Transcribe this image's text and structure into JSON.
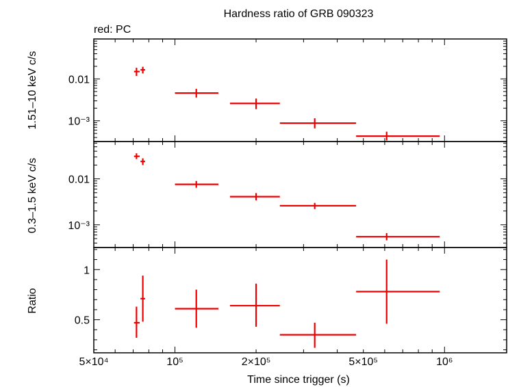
{
  "chart_data": {
    "type": "scatter",
    "title": "Hardness ratio of GRB 090323",
    "subtitle": "red: PC",
    "xlabel": "Time since trigger (s)",
    "x_scale": "log",
    "xlim": [
      50000,
      1700000
    ],
    "x_ticks": [
      {
        "value": 50000,
        "label": "5×10⁴"
      },
      {
        "value": 100000,
        "label": "10⁵"
      },
      {
        "value": 200000,
        "label": "2×10⁵"
      },
      {
        "value": 500000,
        "label": "5×10⁵"
      },
      {
        "value": 1000000,
        "label": "10⁶"
      }
    ],
    "series_color": "#ee0000",
    "panels": [
      {
        "id": "hard",
        "ylabel": "1.51–10 keV c/s",
        "y_scale": "log",
        "ylim": [
          0.00032,
          0.09
        ],
        "y_ticks": [
          {
            "value": 0.01,
            "label": "0.01"
          },
          {
            "value": 0.001,
            "label": "10⁻³"
          }
        ],
        "points": [
          {
            "x": 72000,
            "xlo": 70500,
            "xhi": 74000,
            "y": 0.015,
            "ylo": 0.0118,
            "yhi": 0.0185
          },
          {
            "x": 76000,
            "xlo": 74500,
            "xhi": 77500,
            "y": 0.0165,
            "ylo": 0.0135,
            "yhi": 0.0195
          },
          {
            "x": 120000,
            "xlo": 100000,
            "xhi": 145000,
            "y": 0.0046,
            "ylo": 0.0036,
            "yhi": 0.0058
          },
          {
            "x": 200000,
            "xlo": 160000,
            "xhi": 245000,
            "y": 0.0026,
            "ylo": 0.0019,
            "yhi": 0.0034
          },
          {
            "x": 330000,
            "xlo": 245000,
            "xhi": 470000,
            "y": 0.00088,
            "ylo": 0.00066,
            "yhi": 0.00115
          },
          {
            "x": 610000,
            "xlo": 470000,
            "xhi": 960000,
            "y": 0.00043,
            "ylo": 0.00034,
            "yhi": 0.00055
          }
        ]
      },
      {
        "id": "soft",
        "ylabel": "0.3–1.5 keV c/s",
        "y_scale": "log",
        "ylim": [
          0.00032,
          0.065
        ],
        "y_ticks": [
          {
            "value": 0.01,
            "label": "0.01"
          },
          {
            "value": 0.001,
            "label": "10⁻³"
          }
        ],
        "points": [
          {
            "x": 72000,
            "xlo": 70500,
            "xhi": 74000,
            "y": 0.031,
            "ylo": 0.027,
            "yhi": 0.036
          },
          {
            "x": 76000,
            "xlo": 74500,
            "xhi": 77500,
            "y": 0.024,
            "ylo": 0.02,
            "yhi": 0.028
          },
          {
            "x": 120000,
            "xlo": 100000,
            "xhi": 145000,
            "y": 0.0076,
            "ylo": 0.0064,
            "yhi": 0.009
          },
          {
            "x": 200000,
            "xlo": 160000,
            "xhi": 245000,
            "y": 0.0041,
            "ylo": 0.0034,
            "yhi": 0.0049
          },
          {
            "x": 330000,
            "xlo": 245000,
            "xhi": 470000,
            "y": 0.0026,
            "ylo": 0.0022,
            "yhi": 0.003
          },
          {
            "x": 610000,
            "xlo": 470000,
            "xhi": 960000,
            "y": 0.00055,
            "ylo": 0.00046,
            "yhi": 0.00066
          }
        ]
      },
      {
        "id": "ratio",
        "ylabel": "Ratio",
        "y_scale": "linear",
        "ylim": [
          0.17,
          1.22
        ],
        "y_ticks": [
          {
            "value": 1,
            "label": "1"
          },
          {
            "value": 0.5,
            "label": "0.5"
          }
        ],
        "points": [
          {
            "x": 72000,
            "xlo": 70500,
            "xhi": 74000,
            "y": 0.47,
            "ylo": 0.32,
            "yhi": 0.63
          },
          {
            "x": 76000,
            "xlo": 74500,
            "xhi": 77500,
            "y": 0.71,
            "ylo": 0.48,
            "yhi": 0.94
          },
          {
            "x": 120000,
            "xlo": 100000,
            "xhi": 145000,
            "y": 0.61,
            "ylo": 0.42,
            "yhi": 0.8
          },
          {
            "x": 200000,
            "xlo": 160000,
            "xhi": 245000,
            "y": 0.64,
            "ylo": 0.43,
            "yhi": 0.86
          },
          {
            "x": 330000,
            "xlo": 245000,
            "xhi": 470000,
            "y": 0.35,
            "ylo": 0.22,
            "yhi": 0.47
          },
          {
            "x": 610000,
            "xlo": 470000,
            "xhi": 960000,
            "y": 0.78,
            "ylo": 0.46,
            "yhi": 1.1
          }
        ]
      }
    ]
  }
}
